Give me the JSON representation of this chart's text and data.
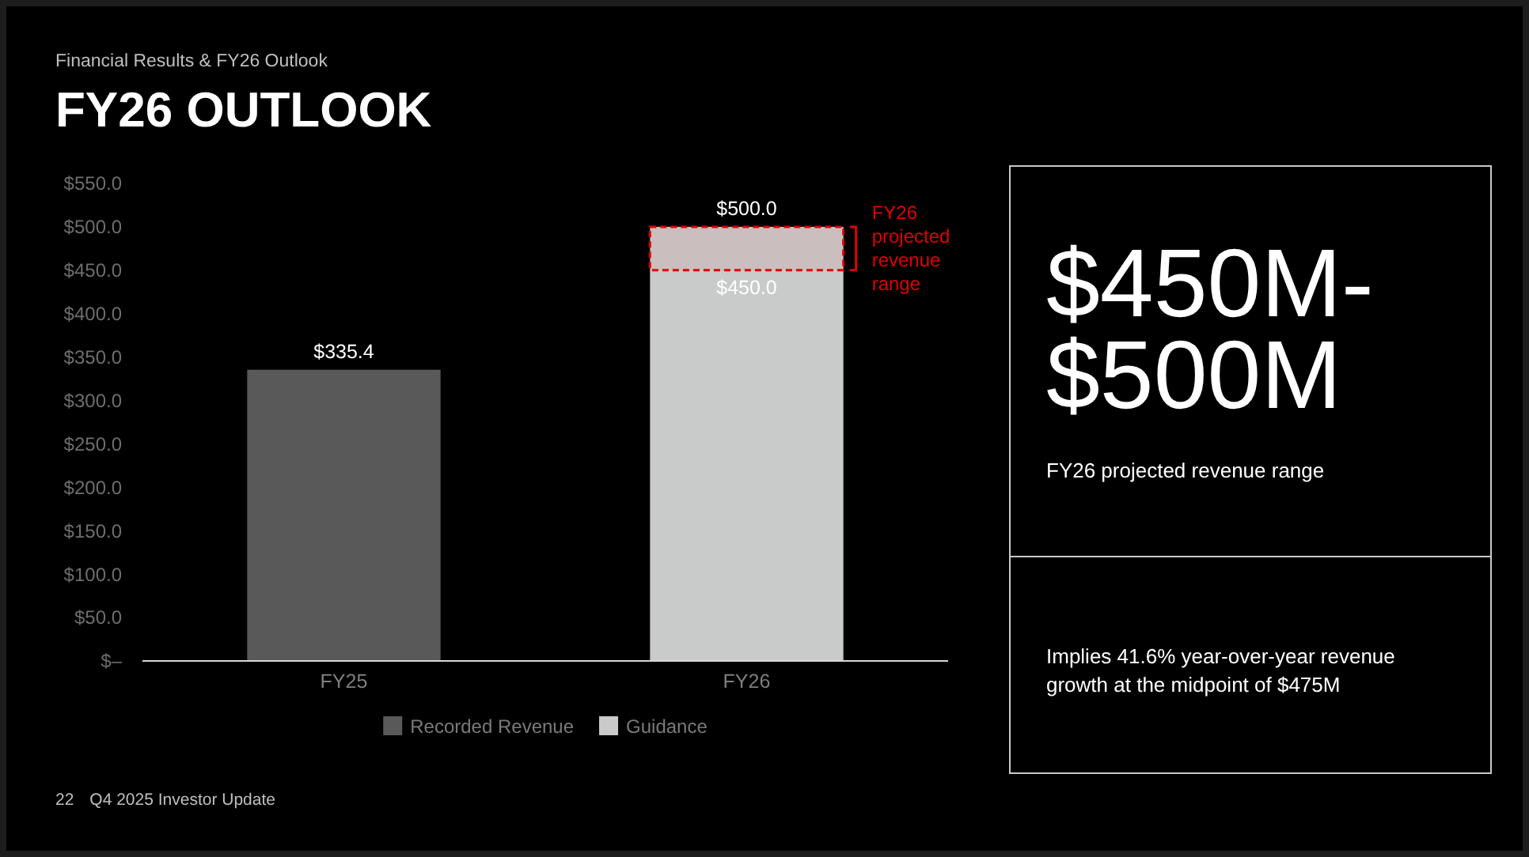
{
  "chart_data": [
    {
      "type": "bar",
      "title": "FY26 OUTLOOK",
      "subtitle": "Financial Results & FY26 Outlook",
      "categories": [
        "FY25",
        "FY26"
      ],
      "series": [
        {
          "name": "Recorded Revenue",
          "color": "#595959",
          "values": [
            335.4,
            null
          ],
          "value_labels": [
            "$335.4",
            null
          ]
        },
        {
          "name": "Guidance",
          "color": "#c9cbca",
          "values": [
            null,
            500.0
          ],
          "value_labels": [
            null,
            "$500.0"
          ]
        },
        {
          "name": "FY26 projected revenue range",
          "color": "#e00000",
          "base": [
            null,
            450
          ],
          "values": [
            null,
            50
          ]
        }
      ],
      "ylim": [
        0,
        550
      ],
      "yticks": [
        {
          "value": 0,
          "label": "$–"
        },
        {
          "value": 50,
          "label": "$50.0"
        },
        {
          "value": 100,
          "label": "$100.0"
        },
        {
          "value": 150,
          "label": "$150.0"
        },
        {
          "value": 200,
          "label": "$200.0"
        },
        {
          "value": 250,
          "label": "$250.0"
        },
        {
          "value": 300,
          "label": "$300.0"
        },
        {
          "value": 350,
          "label": "$350.0"
        },
        {
          "value": 400,
          "label": "$400.0"
        },
        {
          "value": 450,
          "label": "$450.0"
        },
        {
          "value": 500,
          "label": "$500.0"
        },
        {
          "value": 550,
          "label": "$550.0"
        }
      ],
      "legend": "bottom",
      "annotations": [
        {
          "text": "$450.0",
          "x": "FY26",
          "y": 450
        },
        "22",
        "Q4 2025 Investor Update"
      ]
    },
    {
      "type": "other",
      "title": "$450M-$500M",
      "annotations": [
        "FY26 projected revenue range",
        "Implies 41.6% year-over-year revenue growth at the midpoint of $475M"
      ]
    }
  ]
}
